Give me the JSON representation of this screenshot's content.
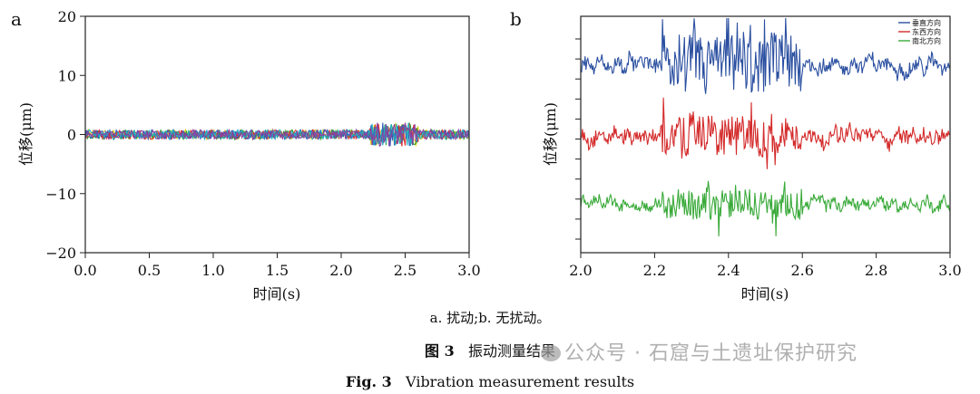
{
  "chart_data": [
    {
      "panel_label": "a",
      "type": "line",
      "xlabel": "时间(s)",
      "ylabel": "位移(μm)",
      "xlim": [
        0.0,
        3.0
      ],
      "ylim": [
        -20,
        20
      ],
      "xticks": [
        "0.0",
        "0.5",
        "1.0",
        "1.5",
        "2.0",
        "2.5",
        "3.0"
      ],
      "yticks": [
        "−20",
        "−10",
        "0",
        "10",
        "20"
      ],
      "xtick_values": [
        0,
        0.5,
        1.0,
        1.5,
        2.0,
        2.5,
        3.0
      ],
      "ytick_values": [
        -20,
        -10,
        0,
        10,
        20
      ],
      "grid": false,
      "legend": "none",
      "series_colors": [
        "#e0d020",
        "#30a030",
        "#e03030",
        "#3060c0",
        "#20b0c0",
        "#8a40a0"
      ],
      "noise": {
        "baseline_amplitude_um": 0.8,
        "burst_range_s": [
          2.22,
          2.6
        ],
        "burst_amplitude_um": 2.0
      }
    },
    {
      "panel_label": "b",
      "type": "line",
      "xlabel": "时间(s)",
      "ylabel": "位移(μm)",
      "xlim": [
        2.0,
        3.0
      ],
      "xticks": [
        "2.0",
        "2.2",
        "2.4",
        "2.6",
        "2.8",
        "3.0"
      ],
      "xtick_values": [
        2.0,
        2.2,
        2.4,
        2.6,
        2.8,
        3.0
      ],
      "yticks_unlabeled": 11,
      "grid": false,
      "legend": "top-right",
      "series": [
        {
          "name": "垂直方向",
          "color": "#2a4fa0",
          "noise": {
            "baseline_amplitude": 0.6,
            "burst_range_s": [
              2.22,
              2.6
            ],
            "burst_amplitude": 2.6
          }
        },
        {
          "name": "东西方向",
          "color": "#d42a2a",
          "noise": {
            "baseline_amplitude": 0.7,
            "burst_range_s": [
              2.22,
              2.6
            ],
            "burst_amplitude": 2.0
          }
        },
        {
          "name": "南北方向",
          "color": "#3aaa3a",
          "noise": {
            "baseline_amplitude": 0.6,
            "burst_range_s": [
              2.22,
              2.6
            ],
            "burst_amplitude": 1.7
          }
        }
      ]
    }
  ],
  "caption": {
    "note": "a. 扰动;b. 无扰动。",
    "figure_cn_label": "图 3",
    "figure_cn_title": "振动测量结果",
    "figure_en_label": "Fig. 3",
    "figure_en_title": "Vibration measurement results"
  },
  "watermark": {
    "text": "公众号 · 石窟与土遗址保护研究",
    "icon": "wechat-icon"
  }
}
